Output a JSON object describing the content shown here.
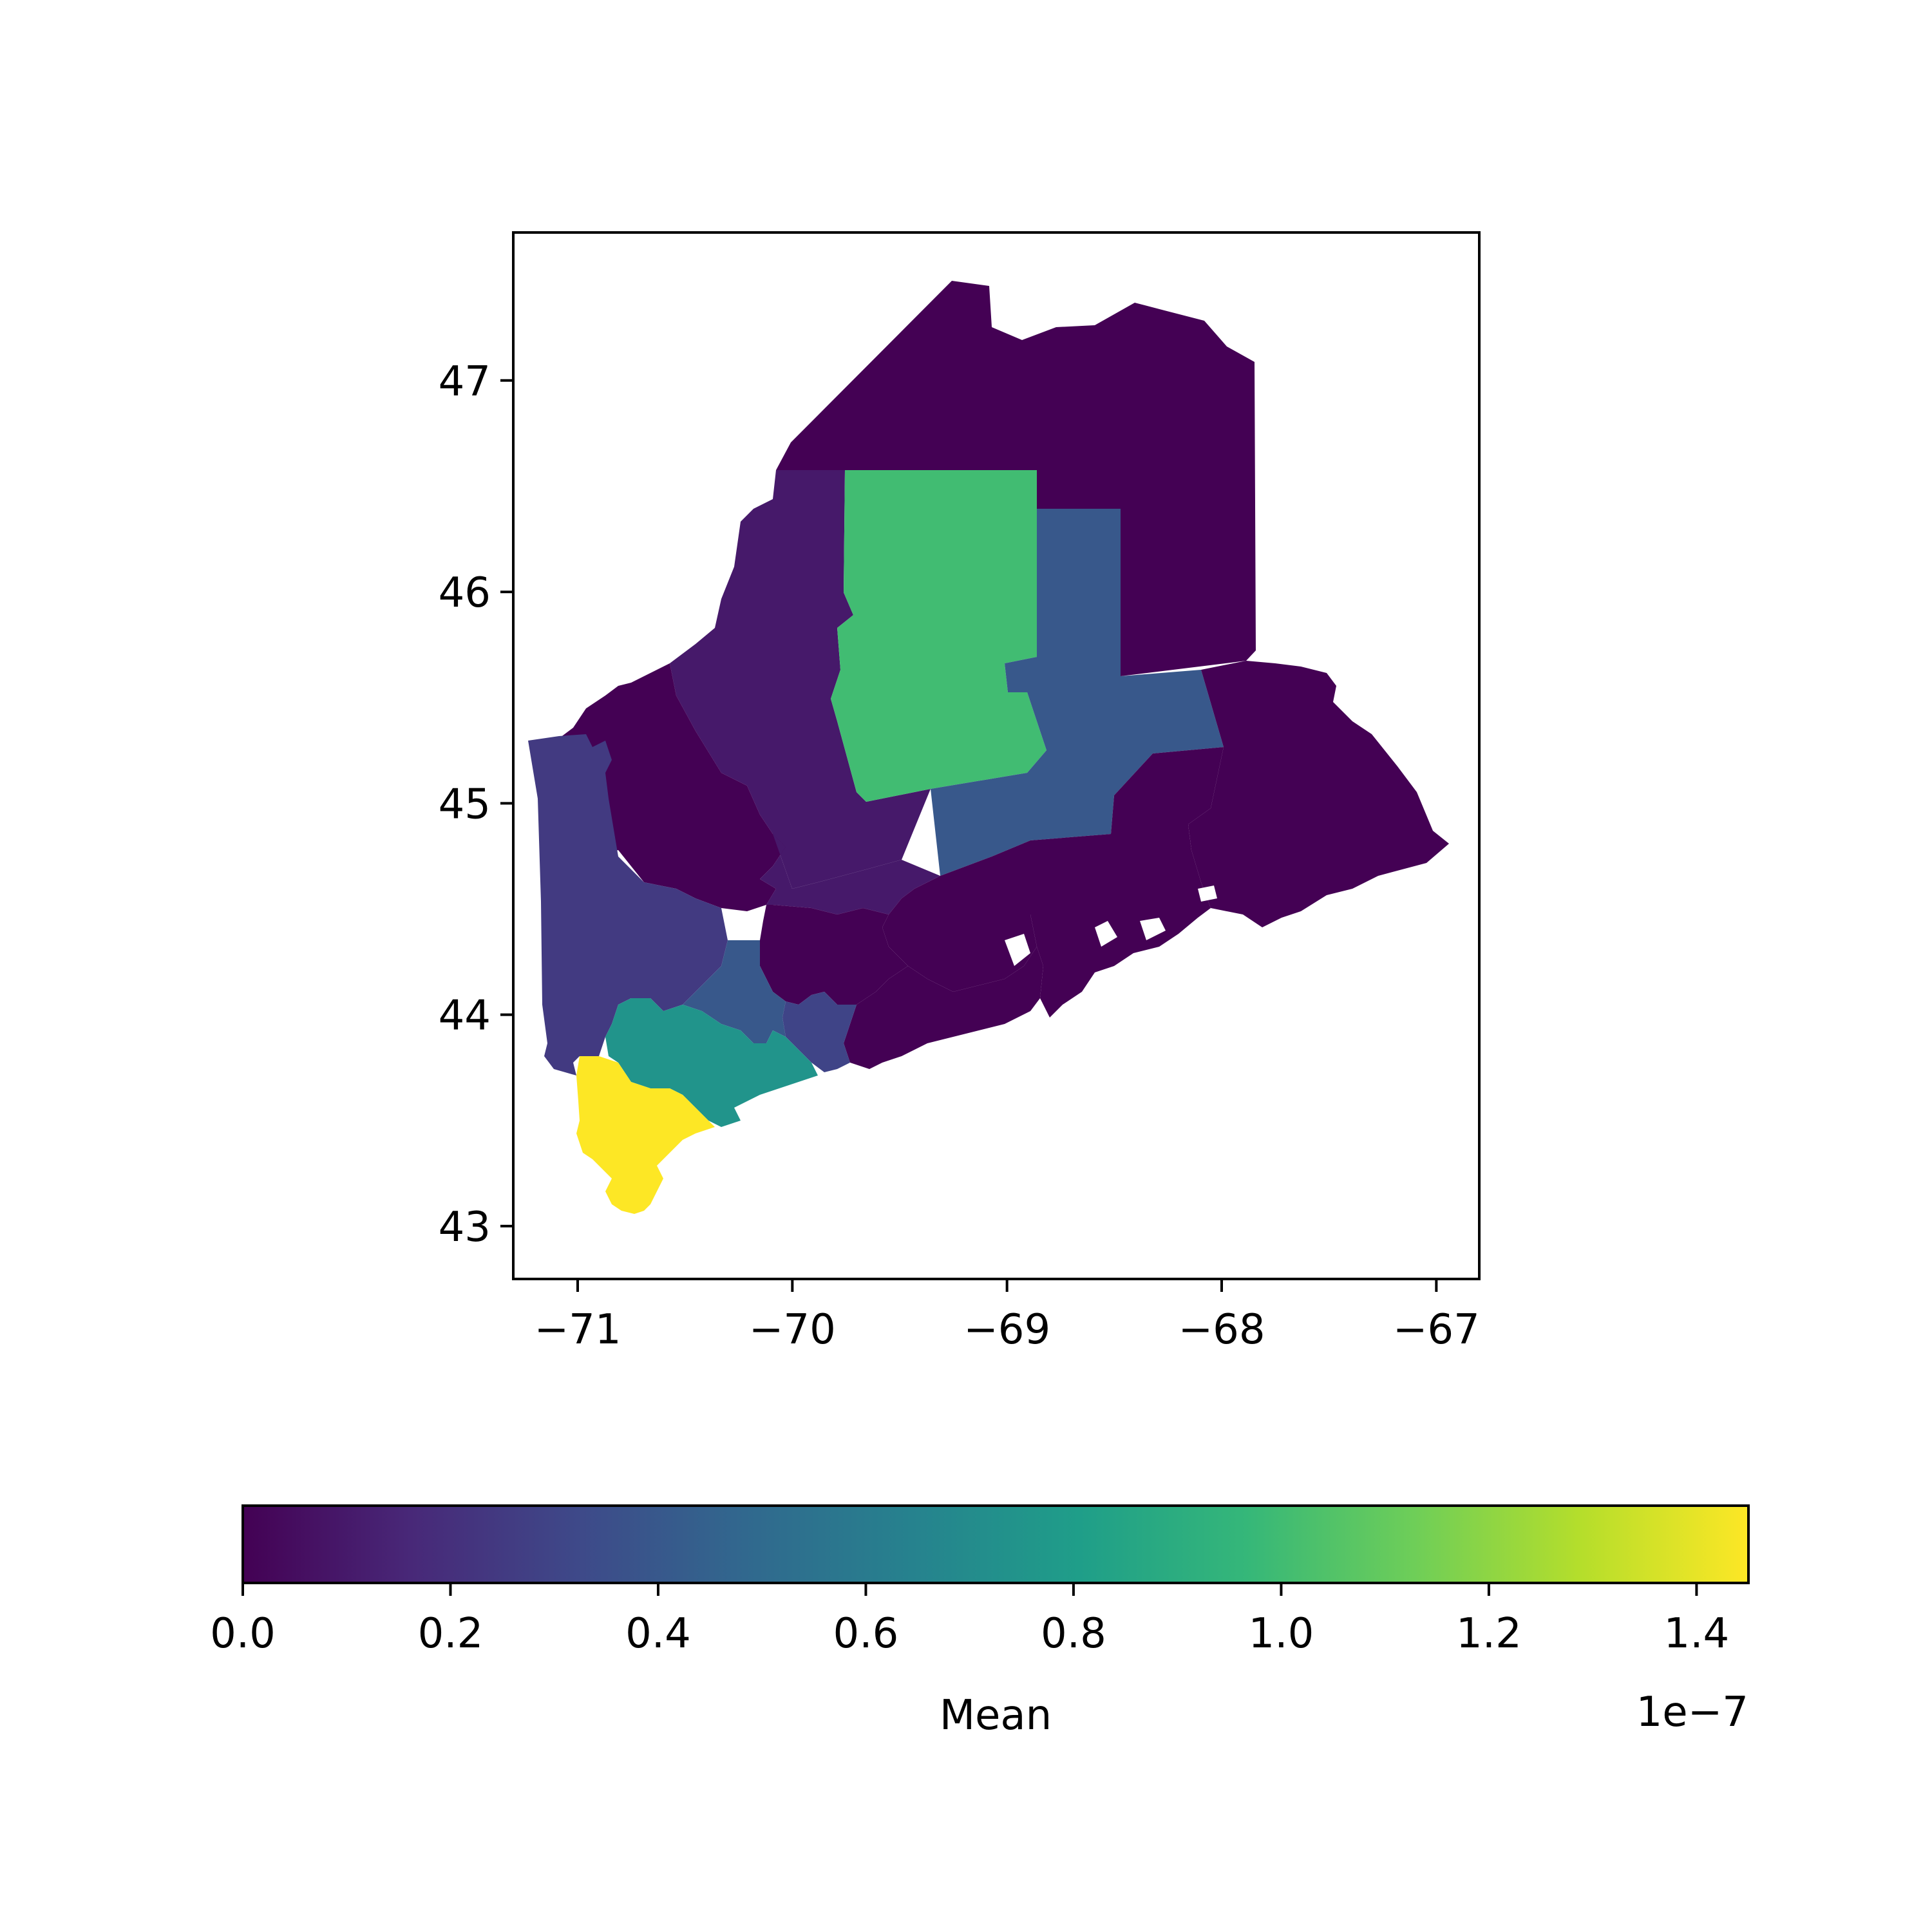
{
  "chart_data": {
    "type": "choropleth",
    "map_axes": {
      "xlim": [
        -71.3,
        -66.8
      ],
      "ylim": [
        42.75,
        47.7
      ],
      "x_ticks": [
        -71,
        -70,
        -69,
        -68,
        -67
      ],
      "x_tick_labels": [
        "−71",
        "−70",
        "−69",
        "−68",
        "−67"
      ],
      "y_ticks": [
        43,
        44,
        45,
        46,
        47
      ],
      "y_tick_labels": [
        "43",
        "44",
        "45",
        "46",
        "47"
      ]
    },
    "colormap": "viridis",
    "colormap_stops": [
      "#440154",
      "#482878",
      "#3e4989",
      "#31688e",
      "#26828e",
      "#1f9e89",
      "#35b779",
      "#6ece58",
      "#b5de2b",
      "#fde725"
    ],
    "regions": [
      {
        "id": "aroostook",
        "value": 0.0
      },
      {
        "id": "piscataquis",
        "value": 1e-08
      },
      {
        "id": "penobscot-north",
        "value": 1e-07
      },
      {
        "id": "penobscot-east",
        "value": 4e-08
      },
      {
        "id": "washington",
        "value": 0.0
      },
      {
        "id": "hancock",
        "value": 0.0
      },
      {
        "id": "somerset-west",
        "value": 0.0
      },
      {
        "id": "somerset-east",
        "value": 1e-08
      },
      {
        "id": "waldo",
        "value": 0.0
      },
      {
        "id": "kennebec",
        "value": 0.0
      },
      {
        "id": "knox",
        "value": 0.0
      },
      {
        "id": "oxford",
        "value": 2.5e-08
      },
      {
        "id": "androscoggin",
        "value": 4e-08
      },
      {
        "id": "sagadahoc",
        "value": 3e-08
      },
      {
        "id": "cumberland",
        "value": 7.5e-08
      },
      {
        "id": "york",
        "value": 1.45e-07
      }
    ],
    "colorbar": {
      "label": "Mean",
      "min": 0.0,
      "max": 1.45e-07,
      "ticks": [
        0.0,
        0.2,
        0.4,
        0.6,
        0.8,
        1.0,
        1.2,
        1.4
      ],
      "tick_labels": [
        "0.0",
        "0.2",
        "0.4",
        "0.6",
        "0.8",
        "1.0",
        "1.2",
        "1.4"
      ],
      "offset_text": "1e−7",
      "orientation": "horizontal"
    }
  }
}
